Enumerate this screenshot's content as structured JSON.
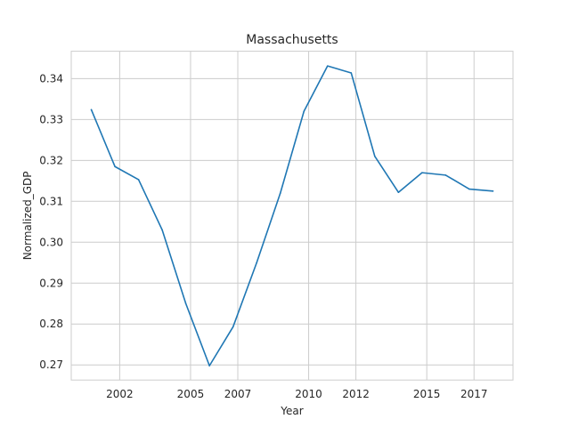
{
  "chart_data": {
    "type": "line",
    "title": "Massachusetts",
    "xlabel": "Year",
    "ylabel": "Normalized_GDP",
    "xlim": [
      1999.95,
      2018.65
    ],
    "ylim": [
      0.2663,
      0.3467
    ],
    "xticks": [
      2002,
      2005,
      2007,
      2010,
      2012,
      2015,
      2017
    ],
    "xtick_labels": [
      "2002",
      "2005",
      "2007",
      "2010",
      "2012",
      "2015",
      "2017"
    ],
    "yticks": [
      0.27,
      0.28,
      0.29,
      0.3,
      0.31,
      0.32,
      0.33,
      0.34
    ],
    "ytick_labels": [
      "0.27",
      "0.28",
      "0.29",
      "0.30",
      "0.31",
      "0.32",
      "0.33",
      "0.34"
    ],
    "grid": true,
    "series": [
      {
        "color": "#1f77b4",
        "x": [
          2000.8,
          2001.8,
          2002.8,
          2003.8,
          2004.8,
          2005.8,
          2006.8,
          2007.8,
          2008.8,
          2009.8,
          2010.8,
          2011.8,
          2012.8,
          2013.8,
          2014.8,
          2015.8,
          2016.8,
          2017.8
        ],
        "y": [
          0.3324,
          0.3185,
          0.3153,
          0.303,
          0.285,
          0.2698,
          0.2793,
          0.295,
          0.312,
          0.332,
          0.3431,
          0.3414,
          0.321,
          0.3122,
          0.317,
          0.3164,
          0.313,
          0.3125
        ]
      }
    ]
  }
}
